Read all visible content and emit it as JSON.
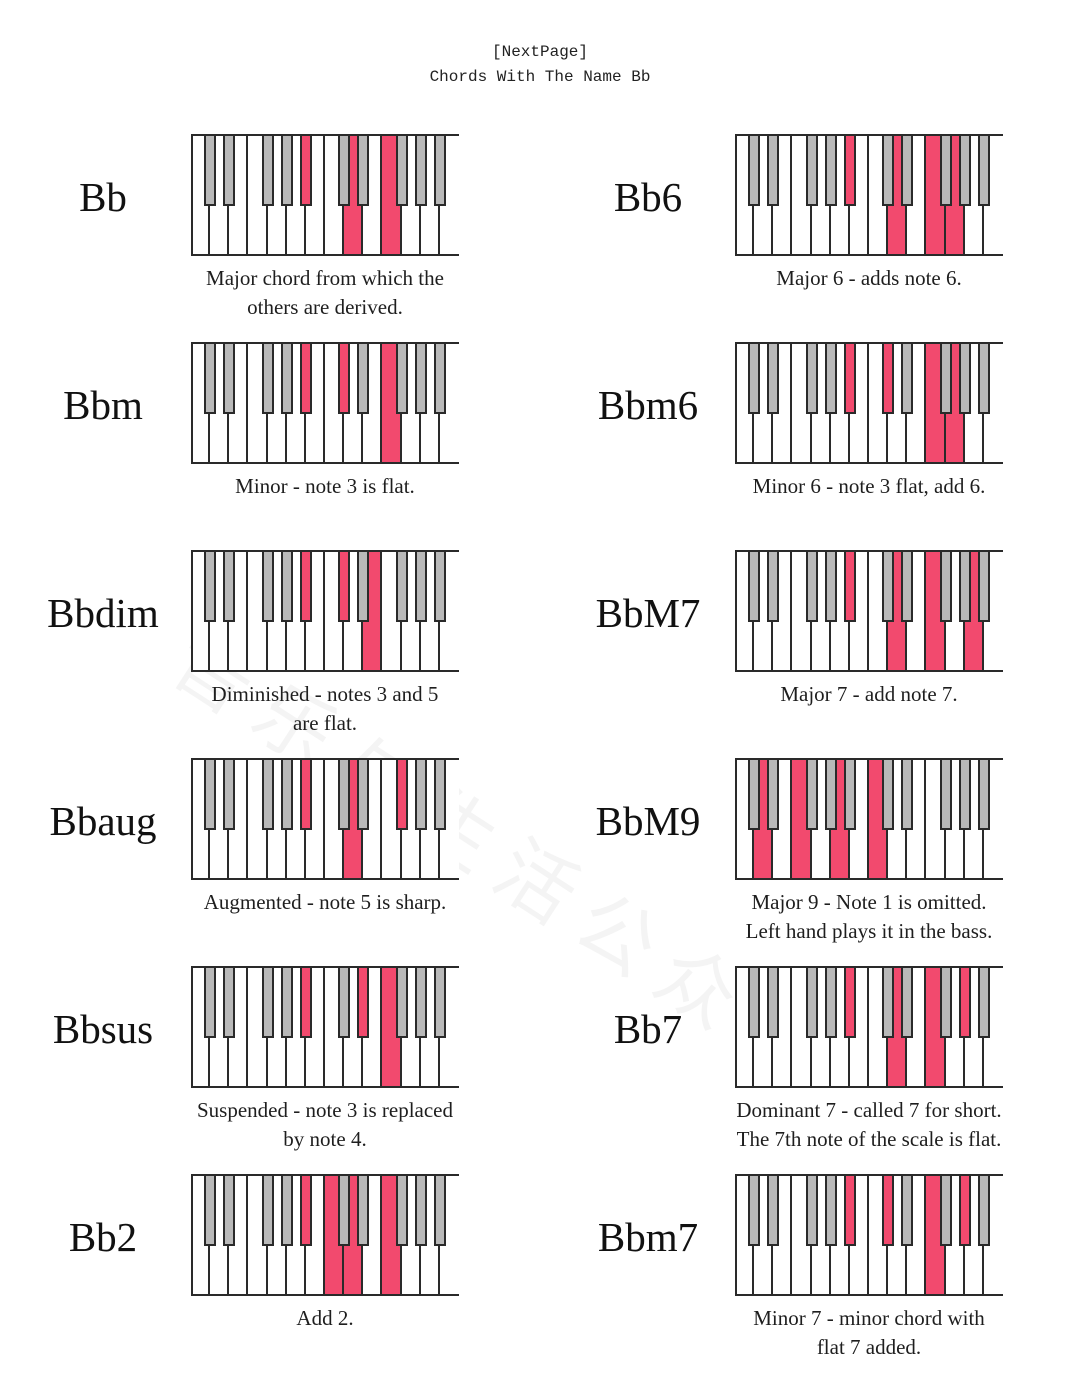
{
  "header": {
    "nav_link": "[NextPage]",
    "title": "Chords With The Name Bb"
  },
  "watermark": "音乐与生活公众号",
  "colors": {
    "highlight": "#f24a6e",
    "black_key": "#b9b9b9",
    "white_key": "#ffffff",
    "outline": "#2a2a2a"
  },
  "keyboard": {
    "white_keys": [
      "C",
      "D",
      "E",
      "F",
      "G",
      "A",
      "B",
      "C",
      "D",
      "E",
      "F",
      "G",
      "A",
      "B"
    ],
    "black_keys": [
      "C#",
      "D#",
      "F#",
      "G#",
      "A#",
      "C#",
      "D#",
      "F#",
      "G#",
      "A#"
    ]
  },
  "chords": [
    {
      "name": "Bb",
      "caption": "Major chord from which the others are derived.",
      "caption_lines": [
        "Major chord from which the",
        "others are derived."
      ],
      "white_on": [
        8,
        10
      ],
      "black_on": [
        4
      ],
      "notes": [
        "Bb",
        "D",
        "F"
      ]
    },
    {
      "name": "Bb6",
      "caption": "Major 6 - adds note 6.",
      "caption_lines": [
        "Major 6 - adds note 6."
      ],
      "white_on": [
        8,
        10,
        11
      ],
      "black_on": [
        4
      ],
      "notes": [
        "Bb",
        "D",
        "F",
        "G"
      ]
    },
    {
      "name": "Bbm",
      "caption": "Minor - note 3 is flat.",
      "caption_lines": [
        "Minor - note 3 is flat."
      ],
      "white_on": [
        10
      ],
      "black_on": [
        4,
        5
      ],
      "notes": [
        "Bb",
        "Db",
        "F"
      ]
    },
    {
      "name": "Bbm6",
      "caption": "Minor 6 - note 3 flat, add 6.",
      "caption_lines": [
        "Minor 6 - note 3 flat, add 6."
      ],
      "white_on": [
        10,
        11
      ],
      "black_on": [
        4,
        5
      ],
      "notes": [
        "Bb",
        "Db",
        "F",
        "G"
      ]
    },
    {
      "name": "Bbdim",
      "caption": "Diminished - notes 3 and 5 are flat.",
      "caption_lines": [
        "Diminished - notes 3 and 5",
        "are flat."
      ],
      "white_on": [
        9
      ],
      "black_on": [
        4,
        5
      ],
      "notes": [
        "Bb",
        "Db",
        "Fb"
      ]
    },
    {
      "name": "BbM7",
      "caption": "Major 7 - add note 7.",
      "caption_lines": [
        "Major 7 - add note 7."
      ],
      "white_on": [
        8,
        10,
        12
      ],
      "black_on": [
        4
      ],
      "notes": [
        "Bb",
        "D",
        "F",
        "A"
      ]
    },
    {
      "name": "Bbaug",
      "caption": "Augmented - note 5 is sharp.",
      "caption_lines": [
        "Augmented - note 5 is sharp."
      ],
      "white_on": [
        8
      ],
      "black_on": [
        4,
        7
      ],
      "notes": [
        "Bb",
        "D",
        "F#"
      ]
    },
    {
      "name": "BbM9",
      "caption": "Major 9 - Note 1 is omitted. Left hand plays it in the bass.",
      "caption_lines": [
        "Major 9 - Note 1 is omitted.",
        "Left hand plays it in the bass."
      ],
      "white_on": [
        1,
        3,
        5,
        7
      ],
      "black_on": [],
      "notes": [
        "D",
        "F",
        "A",
        "C"
      ]
    },
    {
      "name": "Bbsus",
      "caption": "Suspended - note 3 is replaced by note 4.",
      "caption_lines": [
        "Suspended - note 3 is replaced",
        "by note 4."
      ],
      "white_on": [
        10
      ],
      "black_on": [
        4,
        6
      ],
      "notes": [
        "Bb",
        "Eb",
        "F"
      ]
    },
    {
      "name": "Bb7",
      "caption": "Dominant 7 - called 7 for short. The 7th note of the scale is flat.",
      "caption_lines": [
        "Dominant 7 - called 7 for short.",
        "The 7th note of the scale is flat."
      ],
      "white_on": [
        8,
        10
      ],
      "black_on": [
        4,
        8
      ],
      "notes": [
        "Bb",
        "D",
        "F",
        "Ab"
      ]
    },
    {
      "name": "Bb2",
      "caption": "Add 2.",
      "caption_lines": [
        "Add 2."
      ],
      "white_on": [
        7,
        8,
        10
      ],
      "black_on": [
        4
      ],
      "notes": [
        "Bb",
        "C",
        "D",
        "F"
      ]
    },
    {
      "name": "Bbm7",
      "caption": "Minor 7 - minor chord with flat 7 added.",
      "caption_lines": [
        "Minor 7 - minor chord with",
        "flat 7 added."
      ],
      "white_on": [
        10
      ],
      "black_on": [
        4,
        5,
        8
      ],
      "notes": [
        "Bb",
        "Db",
        "F",
        "Ab"
      ]
    }
  ]
}
